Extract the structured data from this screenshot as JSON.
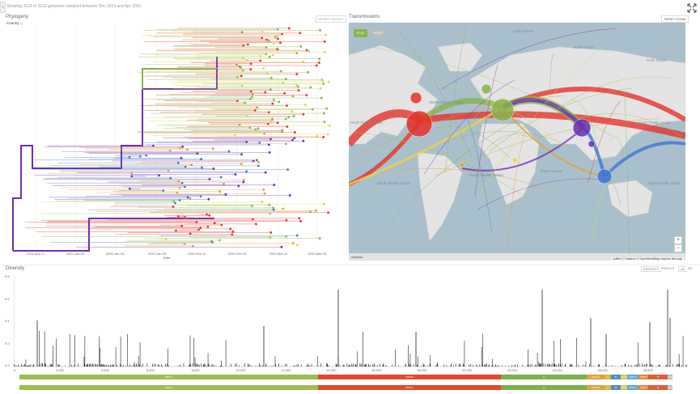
{
  "header": {
    "summary": "Showing 3123 of 3123 genomes sampled between Dec 2019 and Apr 2020."
  },
  "phylogeny": {
    "title": "Phylogeny",
    "color_by": "Country",
    "reset_label": "RESET LAYOUT",
    "axis_label": "Date",
    "ticks": [
      "2019-Dec-17",
      "2020-Jan-03",
      "2020-Jan-15",
      "2020-Jan-29",
      "2020-Feb-12",
      "2020-Feb-26",
      "2020-Mar-11",
      "2020-Mar-25"
    ]
  },
  "transmissions": {
    "title": "Transmissions",
    "reset_zoom_label": "RESET ZOOM",
    "play_label": "PLAY",
    "reset_label": "RESET",
    "zoom_in": "+",
    "zoom_out": "−",
    "attribution": "Leaflet | © Mapbox © OpenStreetMap Improve this map",
    "mapbox_logo": "mapbox",
    "labels": [
      {
        "text": "Arctic Ocean",
        "id": "arctic-a"
      },
      {
        "text": "Arctic Ocean",
        "id": "arctic-b"
      },
      {
        "text": "Arctic Ocean",
        "id": "arctic-c"
      },
      {
        "text": "North Pacific Ocean",
        "id": "npac-a"
      },
      {
        "text": "North Pacific Ocean",
        "id": "npac-b"
      },
      {
        "text": "North Atlantic Ocean",
        "id": "natl"
      },
      {
        "text": "South Atlantic Ocean",
        "id": "satl"
      },
      {
        "text": "Indian Ocean",
        "id": "ind"
      },
      {
        "text": "South Pacific Ocean",
        "id": "spac-a"
      },
      {
        "text": "South Pacific Ocean",
        "id": "spac-b"
      }
    ]
  },
  "diversity": {
    "title": "Diversity",
    "entropy_label": "ENTROPY",
    "events_label": "EVENTS",
    "aa_label": "AA",
    "nt_label": "NT",
    "yticks": [
      "0.8",
      "0.6",
      "0.4",
      "0.2",
      "0.0"
    ],
    "xticks": [
      "0",
      "2,000",
      "4,000",
      "6,000",
      "8,000",
      "10,000",
      "12,000",
      "14,000",
      "16,000",
      "18,000",
      "20,000",
      "22,000",
      "24,000",
      "26,000",
      "28,000"
    ],
    "genes": [
      {
        "label": "ORF1a",
        "color": "#9dbd4d"
      },
      {
        "label": "ORF1b",
        "color": "#e3492b"
      },
      {
        "label": "S",
        "color": "#7bb24a"
      },
      {
        "label": "ORF3a",
        "color": "#e0a33a"
      },
      {
        "label": "E",
        "color": "#d9b73c"
      },
      {
        "label": "M",
        "color": "#4a8fd1"
      },
      {
        "label": "ORF6",
        "color": "#cccc55"
      },
      {
        "label": "ORF7a",
        "color": "#5fa8d8"
      },
      {
        "label": "ORF8",
        "color": "#e6893a"
      },
      {
        "label": "N",
        "color": "#e05b36"
      },
      {
        "label": "ORF10",
        "color": "#bbbbbb"
      }
    ]
  },
  "colors": {
    "purple": "#6b2fb5",
    "green": "#8ab34b",
    "red": "#e3332a",
    "blue": "#3f75d1",
    "yellow": "#d7dc4a"
  }
}
